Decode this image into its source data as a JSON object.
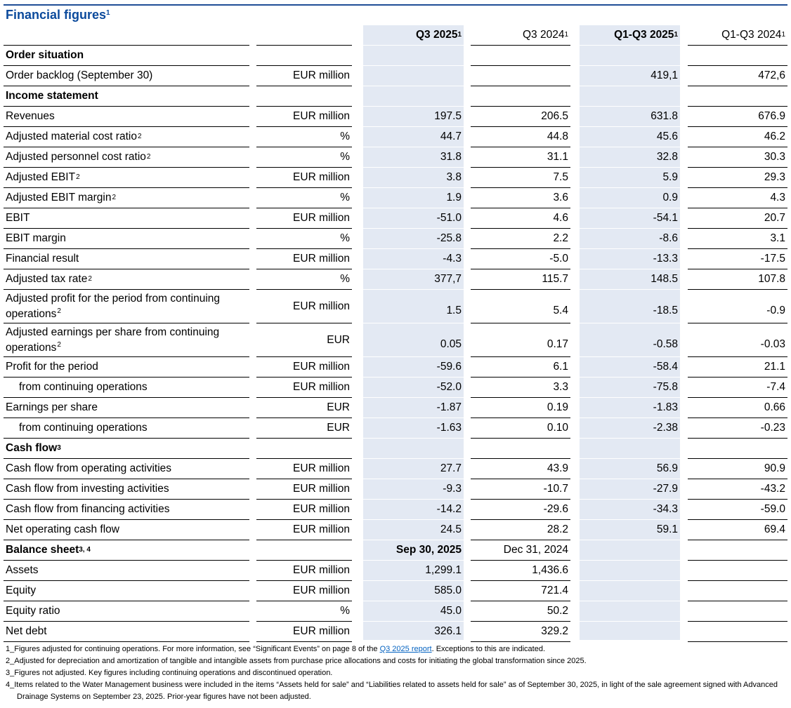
{
  "header": {
    "title": "Financial figures",
    "title_sup": "1"
  },
  "table": {
    "columns": [
      {
        "label": "Q3 2025",
        "sup": "1"
      },
      {
        "label": "Q3 2024",
        "sup": "1"
      },
      {
        "label": "Q1-Q3 2025",
        "sup": "1"
      },
      {
        "label": "Q1-Q3 2024",
        "sup": "1"
      }
    ],
    "rows": [
      {
        "label": "Order situation"
      },
      {
        "label": "Order backlog (September 30)",
        "unit": "EUR million",
        "values": [
          null,
          null,
          "419,1",
          "472,6"
        ]
      },
      {
        "label": "Income statement"
      },
      {
        "label": "Revenues",
        "unit": "EUR million",
        "values": [
          "197.5",
          "206.5",
          "631.8",
          "676.9"
        ]
      },
      {
        "label": "Adjusted material cost ratio",
        "sup": "2",
        "unit": "%",
        "values": [
          "44.7",
          "44.8",
          "45.6",
          "46.2"
        ]
      },
      {
        "label": "Adjusted personnel cost ratio",
        "sup": "2",
        "unit": "%",
        "values": [
          "31.8",
          "31.1",
          "32.8",
          "30.3"
        ]
      },
      {
        "label": "Adjusted EBIT",
        "sup": "2",
        "unit": "EUR million",
        "values": [
          "3.8",
          "7.5",
          "5.9",
          "29.3"
        ]
      },
      {
        "label": "Adjusted EBIT margin",
        "sup": "2",
        "unit": "%",
        "values": [
          "1.9",
          "3.6",
          "0.9",
          "4.3"
        ]
      },
      {
        "label": "EBIT",
        "unit": "EUR million",
        "values": [
          "-51.0",
          "4.6",
          "-54.1",
          "20.7"
        ]
      },
      {
        "label": "EBIT margin",
        "unit": "%",
        "values": [
          "-25.8",
          "2.2",
          "-8.6",
          "3.1"
        ]
      },
      {
        "label": "Financial result",
        "unit": "EUR million",
        "values": [
          "-4.3",
          "-5.0",
          "-13.3",
          "-17.5"
        ]
      },
      {
        "label": "Adjusted tax rate",
        "sup": "2",
        "unit": "%",
        "values": [
          "377,7",
          "115.7",
          "148.5",
          "107.8"
        ]
      },
      {
        "label": "Adjusted profit for the period from continuing operations",
        "sup": "2",
        "unit": "EUR million",
        "values": [
          "1.5",
          "5.4",
          "-18.5",
          "-0.9"
        ]
      },
      {
        "label": "Adjusted earnings per share from continuing operations",
        "sup": "2",
        "unit": "EUR",
        "values": [
          "0.05",
          "0.17",
          "-0.58",
          "-0.03"
        ]
      },
      {
        "label": "Profit for the period",
        "unit": "EUR million",
        "values": [
          "-59.6",
          "6.1",
          "-58.4",
          "21.1"
        ]
      },
      {
        "label": "from continuing operations",
        "unit": "EUR million",
        "values": [
          "-52.0",
          "3.3",
          "-75.8",
          "-7.4"
        ]
      },
      {
        "label": "Earnings per share",
        "unit": "EUR",
        "values": [
          "-1.87",
          "0.19",
          "-1.83",
          "0.66"
        ]
      },
      {
        "label": "from continuing operations",
        "unit": "EUR",
        "values": [
          "-1.63",
          "0.10",
          "-2.38",
          "-0.23"
        ]
      },
      {
        "label": "Cash flow",
        "sup": "3"
      },
      {
        "label": "Cash flow from operating activities",
        "unit": "EUR million",
        "values": [
          "27.7",
          "43.9",
          "56.9",
          "90.9"
        ]
      },
      {
        "label": "Cash flow from investing activities",
        "unit": "EUR million",
        "values": [
          "-9.3",
          "-10.7",
          "-27.9",
          "-43.2"
        ]
      },
      {
        "label": "Cash flow from financing activities",
        "unit": "EUR million",
        "values": [
          "-14.2",
          "-29.6",
          "-34.3",
          "-59.0"
        ]
      },
      {
        "label": "Net operating cash flow",
        "unit": "EUR million",
        "values": [
          "24.5",
          "28.2",
          "59.1",
          "69.4"
        ]
      },
      {
        "label": "Balance sheet",
        "sup": "3, 4",
        "values": [
          "Sep 30, 2025",
          "Dec 31, 2024"
        ]
      },
      {
        "label": "Assets",
        "unit": "EUR million",
        "values": [
          "1,299.1",
          "1,436.6"
        ]
      },
      {
        "label": "Equity",
        "unit": "EUR million",
        "values": [
          "585.0",
          "721.4"
        ]
      },
      {
        "label": "Equity ratio",
        "unit": "%",
        "values": [
          "45.0",
          "50.2"
        ]
      },
      {
        "label": "Net debt",
        "unit": "EUR million",
        "values": [
          "326.1",
          "329.2"
        ]
      }
    ]
  },
  "footnotes": [
    {
      "before": "1_Figures adjusted for continuing operations. For more information, see “Significant Events” on page 8 of the ",
      "link": "Q3 2025 report",
      "after": ". Exceptions to this are indicated."
    },
    {
      "text": "2_Adjusted for depreciation and amortization of tangible and intangible assets from purchase price allocations and costs for initiating the global transformation since 2025."
    },
    {
      "text": "3_Figures not adjusted. Key figures including continuing operations and discontinued operation."
    },
    {
      "text": "4_Items related to the Water Management business were included in the items “Assets held for sale” and “Liabilities related to assets held for sale” as of September 30, 2025, in light of the sale agreement signed with Advanced Drainage Systems on September 23, 2025. Prior-year figures have not been adjusted."
    }
  ]
}
